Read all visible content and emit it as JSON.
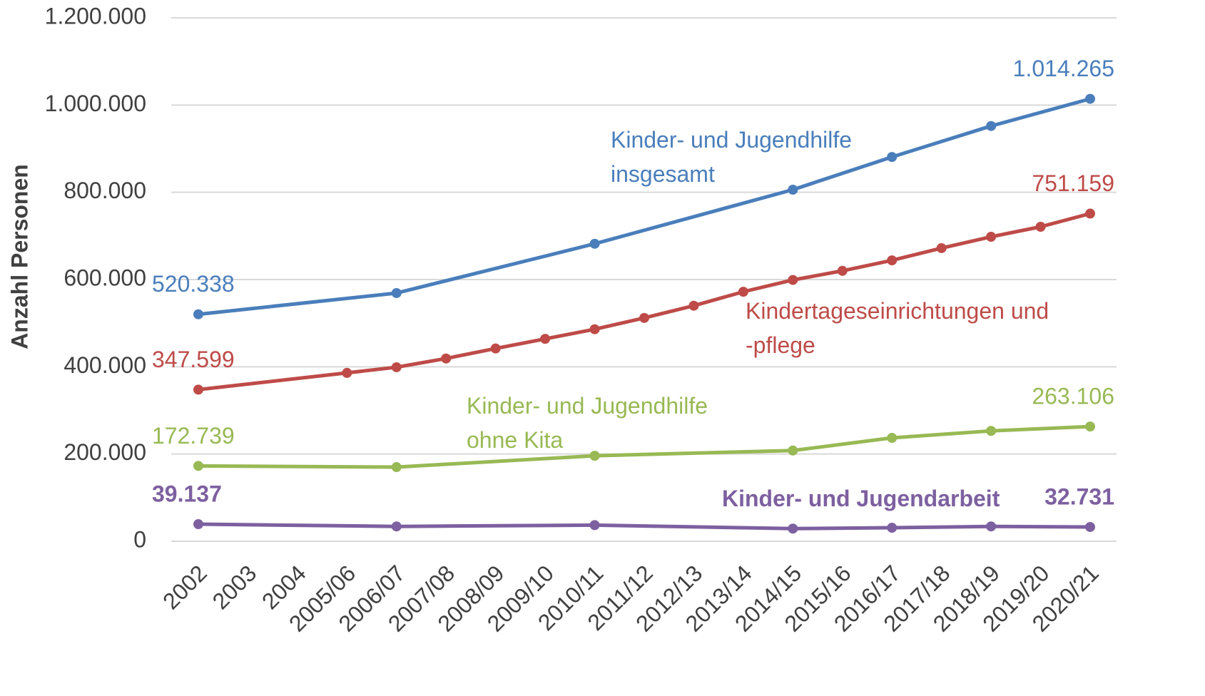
{
  "chart_data": {
    "type": "line",
    "y_label": "Anzahl Personen",
    "categories": [
      "2002",
      "2003",
      "2004",
      "2005/06",
      "2006/07",
      "2007/08",
      "2008/09",
      "2009/10",
      "2010/11",
      "2011/12",
      "2012/13",
      "2013/14",
      "2014/15",
      "2015/16",
      "2016/17",
      "2017/18",
      "2018/19",
      "2019/20",
      "2020/21"
    ],
    "series": [
      {
        "name": "Kinder- und Jugendhilfe insgesamt",
        "color": "#4a7ebb",
        "values": [
          520338,
          null,
          null,
          null,
          569000,
          null,
          null,
          null,
          682000,
          null,
          null,
          null,
          806000,
          null,
          881000,
          null,
          952000,
          null,
          1014265
        ],
        "value_labels": [
          "520.338",
          null,
          null,
          null,
          null,
          null,
          null,
          null,
          null,
          null,
          null,
          null,
          null,
          null,
          null,
          null,
          null,
          null,
          "1.014.265"
        ]
      },
      {
        "name": "Kindertageseinrichtungen und -pflege",
        "color": "#be4b48",
        "values": [
          347599,
          null,
          null,
          386000,
          399000,
          419000,
          442000,
          464000,
          486000,
          512000,
          540000,
          572000,
          599000,
          620000,
          644000,
          672000,
          698000,
          721000,
          751159
        ],
        "value_labels": [
          "347.599",
          null,
          null,
          null,
          null,
          null,
          null,
          null,
          null,
          null,
          null,
          null,
          null,
          null,
          null,
          null,
          null,
          null,
          "751.159"
        ]
      },
      {
        "name": "Kinder- und Jugendhilfe ohne Kita",
        "color": "#98b954",
        "values": [
          172739,
          null,
          null,
          null,
          170000,
          null,
          null,
          null,
          196000,
          null,
          null,
          null,
          208000,
          null,
          237000,
          null,
          253000,
          null,
          263106
        ],
        "value_labels": [
          "172.739",
          null,
          null,
          null,
          null,
          null,
          null,
          null,
          null,
          null,
          null,
          null,
          null,
          null,
          null,
          null,
          null,
          null,
          "263.106"
        ]
      },
      {
        "name": "Kinder- und Jugendarbeit",
        "color": "#7d60a0",
        "values": [
          39137,
          null,
          null,
          null,
          34000,
          null,
          null,
          null,
          37000,
          null,
          null,
          null,
          29000,
          null,
          31000,
          null,
          34000,
          null,
          32731
        ],
        "value_labels": [
          "39.137",
          null,
          null,
          null,
          null,
          null,
          null,
          null,
          null,
          null,
          null,
          null,
          null,
          null,
          null,
          null,
          null,
          null,
          "32.731"
        ]
      }
    ],
    "ylim": [
      0,
      1200000
    ],
    "yticks": [
      0,
      {
        "value": 200000,
        "label": "200.000"
      },
      {
        "value": 400000,
        "label": "400.000"
      },
      {
        "value": 600000,
        "label": "600.000"
      },
      {
        "value": 800000,
        "label": "800.000"
      },
      {
        "value": 1000000,
        "label": "1.000.000"
      },
      {
        "value": 1200000,
        "label": "1.200.000"
      }
    ],
    "grid": true
  }
}
